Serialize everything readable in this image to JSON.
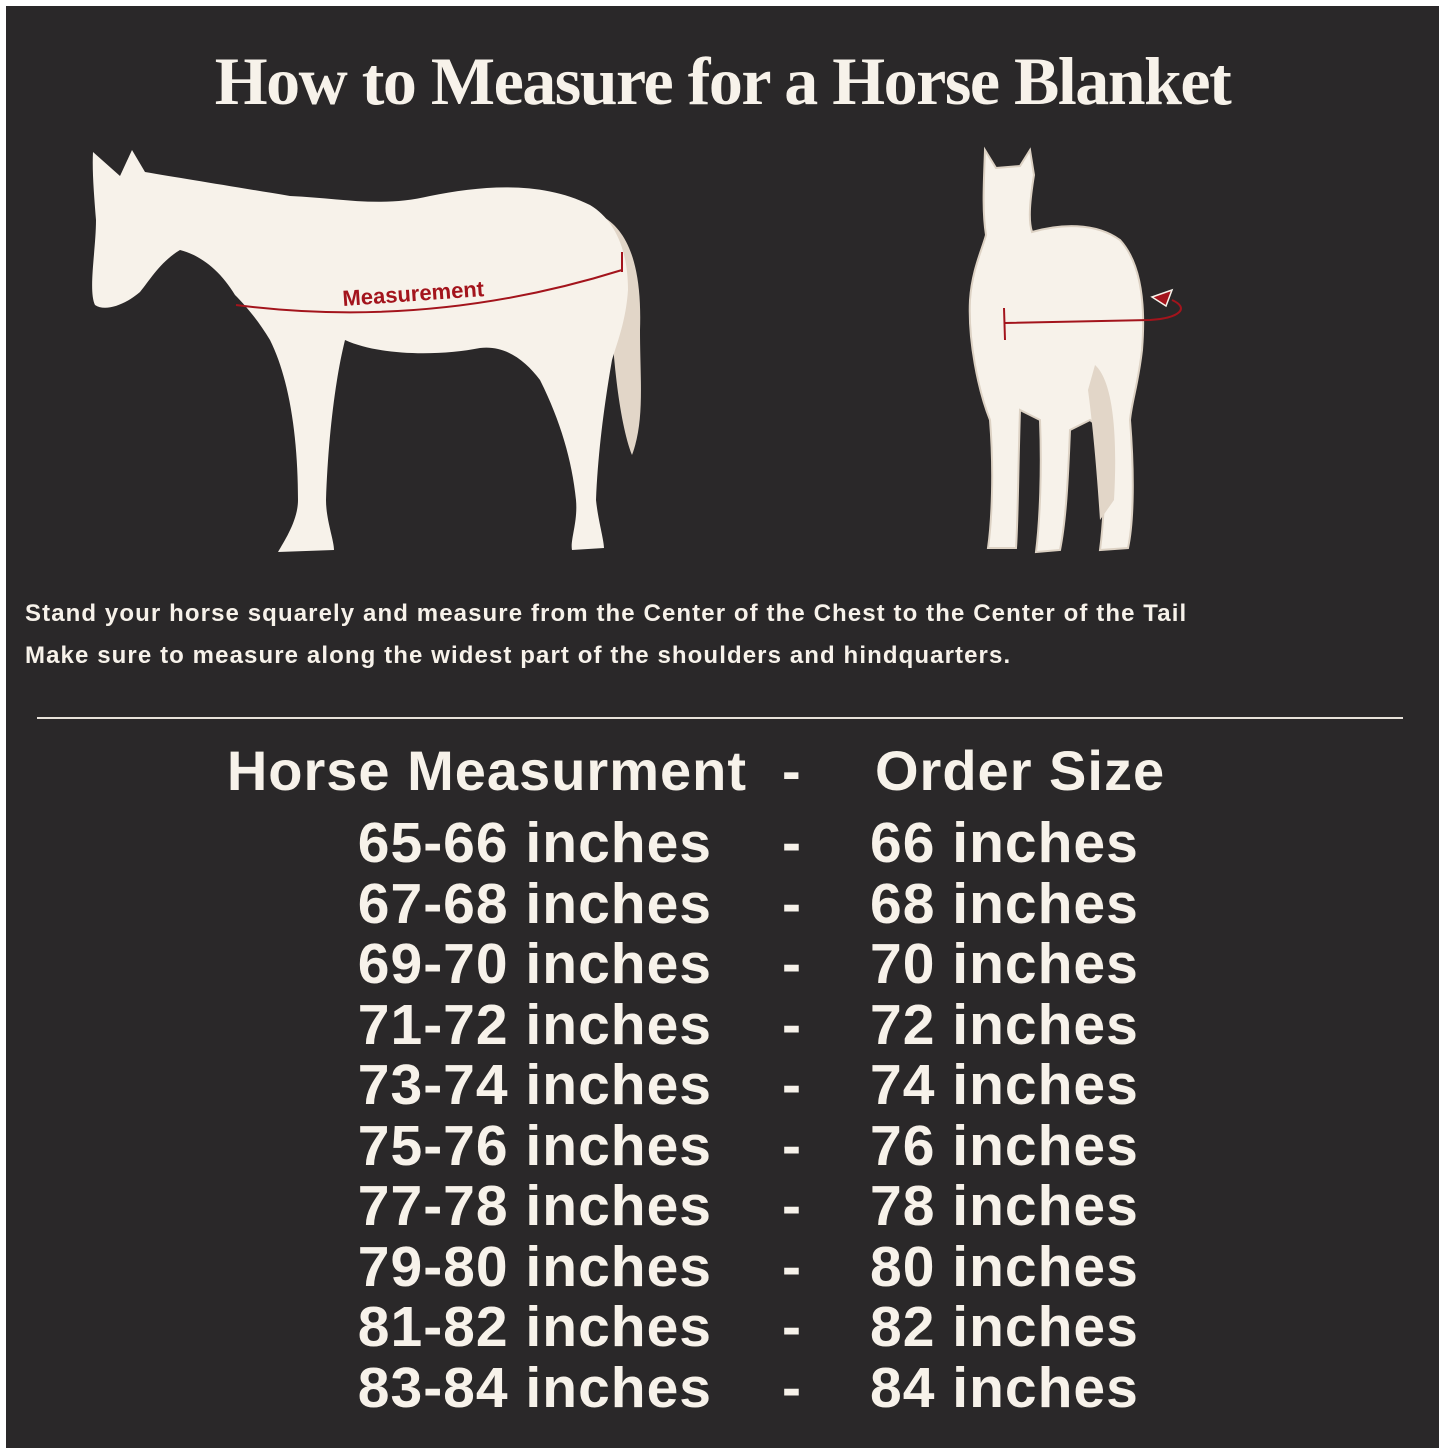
{
  "title": "How to Measure for a Horse Blanket",
  "illustration": {
    "side_label": "Measurement",
    "colors": {
      "background": "#2a2829",
      "horse": "#f7f2ea",
      "tail": "#e2d6c8",
      "measure_line": "#a3141c"
    }
  },
  "instructions": [
    "Stand your horse squarely and measure from the Center of the Chest to the Center of the Tail",
    "Make sure to measure along the widest part of the shoulders and hindquarters."
  ],
  "table": {
    "headers": {
      "measurement": "Horse Measurment",
      "separator": "-",
      "size": "Order Size"
    },
    "rows": [
      {
        "measurement": "65-66 inches",
        "separator": "-",
        "size": "66 inches"
      },
      {
        "measurement": "67-68 inches",
        "separator": "-",
        "size": "68 inches"
      },
      {
        "measurement": "69-70 inches",
        "separator": "-",
        "size": "70 inches"
      },
      {
        "measurement": "71-72 inches",
        "separator": "-",
        "size": "72 inches"
      },
      {
        "measurement": "73-74 inches",
        "separator": "-",
        "size": "74 inches"
      },
      {
        "measurement": "75-76 inches",
        "separator": "-",
        "size": "76 inches"
      },
      {
        "measurement": "77-78 inches",
        "separator": "-",
        "size": "78 inches"
      },
      {
        "measurement": "79-80 inches",
        "separator": "-",
        "size": "80 inches"
      },
      {
        "measurement": "81-82 inches",
        "separator": "-",
        "size": "82 inches"
      },
      {
        "measurement": "83-84 inches",
        "separator": "-",
        "size": "84 inches"
      }
    ]
  }
}
